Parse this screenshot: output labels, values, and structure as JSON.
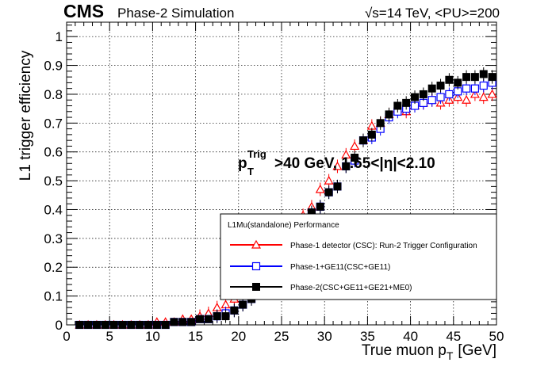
{
  "header": {
    "experiment": "CMS",
    "subtitle": "Phase-2 Simulation",
    "energy": "√s=14 TeV, <PU>=200"
  },
  "annotation": {
    "cut_main": "p",
    "cut_sup": "Trig",
    "cut_sub": "T",
    "cut_rest": ">40 GeV, 1.65<|η|<2.10"
  },
  "legend": {
    "title": "L1Mu(standalone) Performance",
    "entries": [
      "Phase-1 detector (CSC): Run-2 Trigger Configuration",
      "Phase-1+GE11(CSC+GE11)",
      "Phase-2(CSC+GE11+GE21+ME0)"
    ]
  },
  "chart_data": {
    "type": "scatter",
    "title": "",
    "xlabel_main": "True muon p",
    "xlabel_sub": "T",
    "xlabel_unit": "[GeV]",
    "ylabel": "L1 trigger efficiency",
    "xlim": [
      0,
      50
    ],
    "ylim": [
      0,
      1.05
    ],
    "x_ticks": [
      0,
      5,
      10,
      15,
      20,
      25,
      30,
      35,
      40,
      45,
      50
    ],
    "y_ticks": [
      0,
      0.1,
      0.2,
      0.3,
      0.4,
      0.5,
      0.6,
      0.7,
      0.8,
      0.9,
      1
    ],
    "y_tick_labels": [
      "0",
      "0.1",
      "0.2",
      "0.3",
      "0.4",
      "0.5",
      "0.6",
      "0.7",
      "0.8",
      "0.9",
      "1"
    ],
    "grid": true,
    "x": [
      1.5,
      2.5,
      3.5,
      4.5,
      5.5,
      6.5,
      7.5,
      8.5,
      9.5,
      10.5,
      11.5,
      12.5,
      13.5,
      14.5,
      15.5,
      16.5,
      17.5,
      18.5,
      19.5,
      20.5,
      21.5,
      22.5,
      23.5,
      24.5,
      25.5,
      26.5,
      27.5,
      28.5,
      29.5,
      30.5,
      31.5,
      32.5,
      33.5,
      34.5,
      35.5,
      36.5,
      37.5,
      38.5,
      39.5,
      40.5,
      41.5,
      42.5,
      43.5,
      44.5,
      45.5,
      46.5,
      47.5,
      48.5,
      49.5
    ],
    "series": [
      {
        "name": "Phase-1 detector (CSC): Run-2 Trigger Configuration",
        "color": "#ff0000",
        "marker": "open-triangle",
        "values": [
          0.0,
          0.0,
          0.0,
          0.0,
          0.0,
          0.0,
          0.0,
          0.0,
          0.0,
          0.01,
          0.01,
          0.01,
          0.02,
          0.02,
          0.03,
          0.04,
          0.06,
          0.07,
          0.09,
          0.12,
          0.15,
          0.18,
          0.21,
          0.25,
          0.29,
          0.33,
          0.38,
          0.41,
          0.47,
          0.5,
          0.55,
          0.59,
          0.62,
          0.64,
          0.69,
          0.7,
          0.73,
          0.75,
          0.74,
          0.76,
          0.77,
          0.78,
          0.77,
          0.78,
          0.79,
          0.78,
          0.8,
          0.79,
          0.8
        ]
      },
      {
        "name": "Phase-1+GE11(CSC+GE11)",
        "color": "#0000ff",
        "marker": "open-square",
        "values": [
          0.0,
          0.0,
          0.0,
          0.0,
          0.0,
          0.0,
          0.0,
          0.0,
          0.0,
          0.0,
          0.0,
          0.01,
          0.01,
          0.01,
          0.02,
          0.02,
          0.03,
          0.04,
          0.05,
          0.07,
          0.09,
          0.12,
          0.15,
          0.19,
          0.24,
          0.29,
          0.34,
          0.39,
          0.41,
          0.46,
          0.48,
          0.55,
          0.57,
          0.64,
          0.65,
          0.68,
          0.72,
          0.74,
          0.75,
          0.76,
          0.77,
          0.78,
          0.79,
          0.8,
          0.81,
          0.82,
          0.82,
          0.83,
          0.84
        ]
      },
      {
        "name": "Phase-2(CSC+GE11+GE21+ME0)",
        "color": "#000000",
        "marker": "filled-square",
        "values": [
          0.0,
          0.0,
          0.0,
          0.0,
          0.0,
          0.0,
          0.0,
          0.0,
          0.0,
          0.0,
          0.0,
          0.01,
          0.01,
          0.01,
          0.02,
          0.02,
          0.03,
          0.03,
          0.05,
          0.07,
          0.09,
          0.12,
          0.15,
          0.19,
          0.24,
          0.29,
          0.34,
          0.39,
          0.41,
          0.46,
          0.48,
          0.55,
          0.58,
          0.64,
          0.66,
          0.7,
          0.73,
          0.76,
          0.77,
          0.79,
          0.8,
          0.82,
          0.83,
          0.85,
          0.84,
          0.86,
          0.86,
          0.87,
          0.86
        ]
      }
    ]
  }
}
